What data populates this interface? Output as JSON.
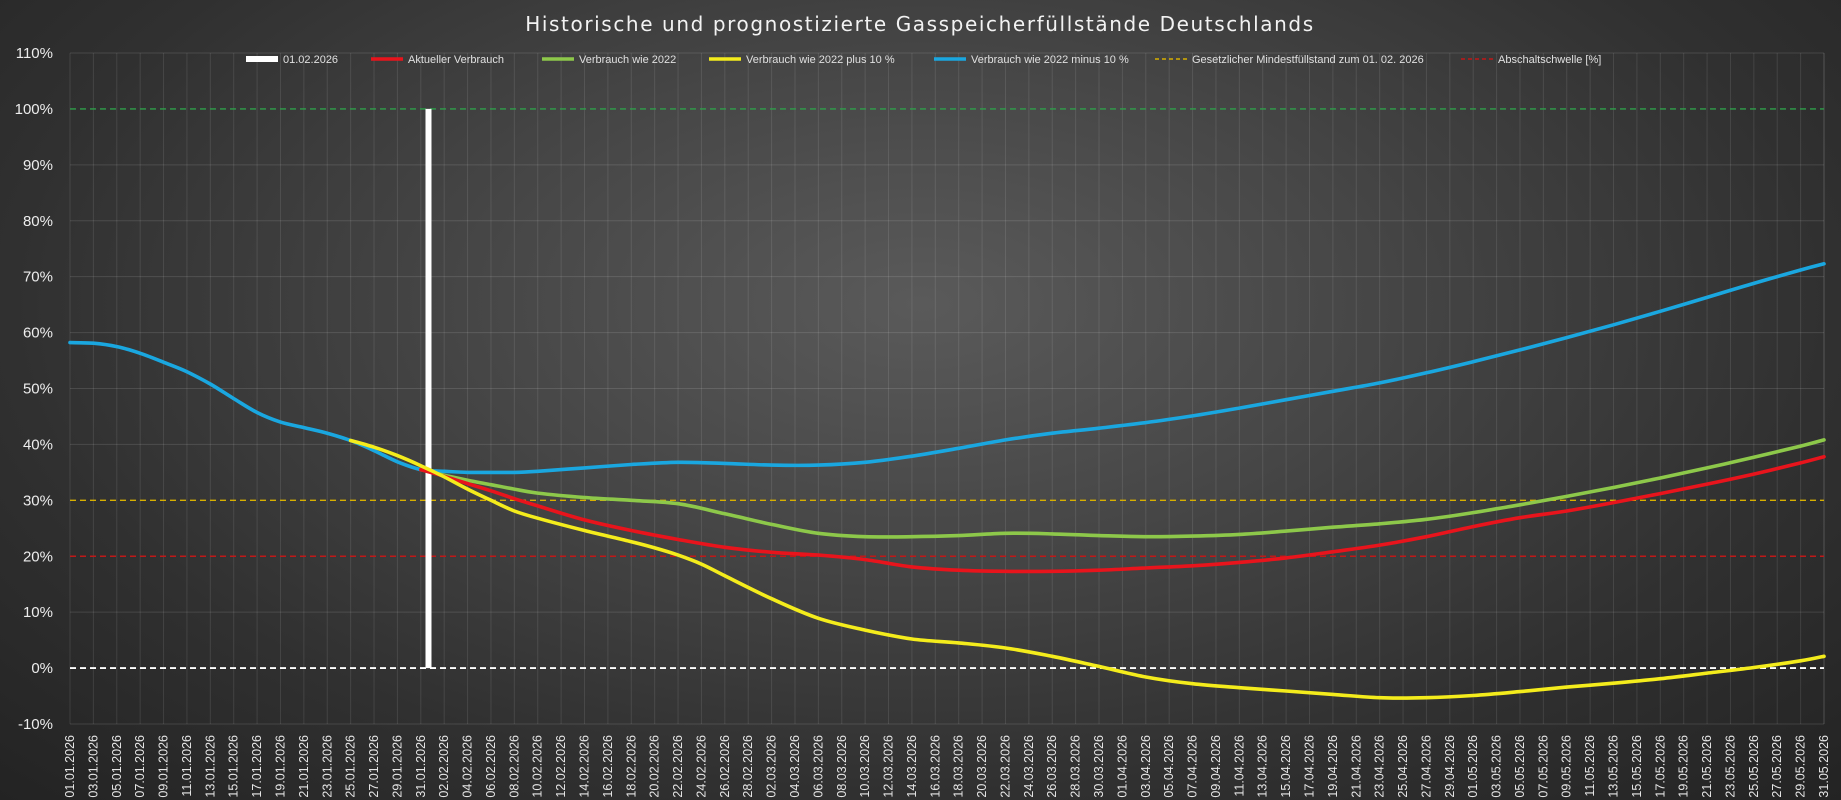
{
  "chart_data": {
    "type": "line",
    "title": "Historische und prognostizierte Gasspeicherfüllstände Deutschlands",
    "xlabel": "",
    "ylabel": "",
    "x_start": "01.01.2026",
    "x_end": "31.05.2026",
    "x_tick_labels": [
      "01.01.2026",
      "03.01.2026",
      "05.01.2026",
      "07.01.2026",
      "09.01.2026",
      "11.01.2026",
      "13.01.2026",
      "15.01.2026",
      "17.01.2026",
      "19.01.2026",
      "21.01.2026",
      "23.01.2026",
      "25.01.2026",
      "27.01.2026",
      "29.01.2026",
      "31.01.2026",
      "02.02.2026",
      "04.02.2026",
      "06.02.2026",
      "08.02.2026",
      "10.02.2026",
      "12.02.2026",
      "14.02.2026",
      "16.02.2026",
      "18.02.2026",
      "20.02.2026",
      "22.02.2026",
      "24.02.2026",
      "26.02.2026",
      "28.02.2026",
      "02.03.2026",
      "04.03.2026",
      "06.03.2026",
      "08.03.2026",
      "10.03.2026",
      "12.03.2026",
      "14.03.2026",
      "16.03.2026",
      "18.03.2026",
      "20.03.2026",
      "22.03.2026",
      "24.03.2026",
      "26.03.2026",
      "28.03.2026",
      "30.03.2026",
      "01.04.2026",
      "03.04.2026",
      "05.04.2026",
      "07.04.2026",
      "09.04.2026",
      "11.04.2026",
      "13.04.2026",
      "15.04.2026",
      "17.04.2026",
      "19.04.2026",
      "21.04.2026",
      "23.04.2026",
      "25.04.2026",
      "27.04.2026",
      "29.04.2026",
      "01.05.2026",
      "03.05.2026",
      "05.05.2026",
      "07.05.2026",
      "09.05.2026",
      "11.05.2026",
      "13.05.2026",
      "15.05.2026",
      "17.05.2026",
      "19.05.2026",
      "21.05.2026",
      "23.05.2026",
      "25.05.2026",
      "27.05.2026",
      "29.05.2026",
      "31.05.2026"
    ],
    "y_tick_labels": [
      "110%",
      "100%",
      "90%",
      "80%",
      "70%",
      "60%",
      "50%",
      "40%",
      "30%",
      "20%",
      "10%",
      "0%",
      "-10%"
    ],
    "ylim": [
      -10,
      110
    ],
    "grid": true,
    "legend_position": "top",
    "series": [
      {
        "name": "Verbrauch wie 2022 minus 10 %",
        "color": "#1aa7e0",
        "x": [
          "01.01.2026",
          "03.01.2026",
          "05.01.2026",
          "07.01.2026",
          "09.01.2026",
          "11.01.2026",
          "13.01.2026",
          "15.01.2026",
          "17.01.2026",
          "19.01.2026",
          "21.01.2026",
          "23.01.2026",
          "25.01.2026",
          "27.01.2026",
          "29.01.2026",
          "31.01.2026",
          "02.02.2026",
          "04.02.2026",
          "06.02.2026",
          "08.02.2026",
          "10.02.2026",
          "14.02.2026",
          "18.02.2026",
          "22.02.2026",
          "26.02.2026",
          "02.03.2026",
          "06.03.2026",
          "10.03.2026",
          "14.03.2026",
          "18.03.2026",
          "22.03.2026",
          "26.03.2026",
          "30.03.2026",
          "03.04.2026",
          "07.04.2026",
          "11.04.2026",
          "15.04.2026",
          "19.04.2026",
          "23.04.2026",
          "27.04.2026",
          "01.05.2026",
          "05.05.2026",
          "09.05.2026",
          "13.05.2026",
          "17.05.2026",
          "21.05.2026",
          "25.05.2026",
          "29.05.2026",
          "31.05.2026"
        ],
        "values": [
          58.2,
          58.1,
          57.5,
          56.3,
          54.7,
          53.0,
          50.8,
          48.2,
          45.7,
          44.0,
          43.0,
          42.0,
          40.7,
          38.9,
          36.9,
          35.5,
          35.2,
          35.0,
          35.0,
          35.0,
          35.2,
          35.8,
          36.4,
          36.8,
          36.6,
          36.3,
          36.3,
          36.8,
          37.9,
          39.3,
          40.8,
          42.0,
          42.9,
          43.9,
          45.1,
          46.5,
          48.0,
          49.5,
          51.0,
          52.8,
          54.8,
          56.9,
          59.1,
          61.4,
          63.8,
          66.3,
          68.8,
          71.2,
          72.3
        ]
      },
      {
        "name": "Verbrauch wie 2022",
        "color": "#8dc84a",
        "x": [
          "31.01.2026",
          "02.02.2026",
          "04.02.2026",
          "06.02.2026",
          "08.02.2026",
          "10.02.2026",
          "14.02.2026",
          "18.02.2026",
          "22.02.2026",
          "26.02.2026",
          "02.03.2026",
          "06.03.2026",
          "10.03.2026",
          "14.03.2026",
          "18.03.2026",
          "22.03.2026",
          "26.03.2026",
          "30.03.2026",
          "03.04.2026",
          "07.04.2026",
          "11.04.2026",
          "15.04.2026",
          "19.04.2026",
          "23.04.2026",
          "27.04.2026",
          "01.05.2026",
          "05.05.2026",
          "09.05.2026",
          "13.05.2026",
          "17.05.2026",
          "21.05.2026",
          "25.05.2026",
          "29.05.2026",
          "31.05.2026"
        ],
        "values": [
          35.5,
          34.5,
          33.6,
          32.8,
          32.0,
          31.3,
          30.5,
          30.0,
          29.4,
          27.6,
          25.7,
          24.1,
          23.5,
          23.5,
          23.7,
          24.1,
          24.0,
          23.7,
          23.5,
          23.6,
          23.9,
          24.5,
          25.2,
          25.8,
          26.6,
          27.8,
          29.2,
          30.7,
          32.3,
          34.0,
          35.8,
          37.7,
          39.7,
          40.8
        ]
      },
      {
        "name": "Aktueller Verbrauch",
        "color": "#e8141c",
        "x": [
          "31.01.2026",
          "02.02.2026",
          "04.02.2026",
          "06.02.2026",
          "08.02.2026",
          "10.02.2026",
          "14.02.2026",
          "18.02.2026",
          "22.02.2026",
          "26.02.2026",
          "02.03.2026",
          "06.03.2026",
          "10.03.2026",
          "14.03.2026",
          "18.03.2026",
          "22.03.2026",
          "26.03.2026",
          "30.03.2026",
          "03.04.2026",
          "07.04.2026",
          "11.04.2026",
          "15.04.2026",
          "19.04.2026",
          "23.04.2026",
          "27.04.2026",
          "01.05.2026",
          "05.05.2026",
          "09.05.2026",
          "13.05.2026",
          "17.05.2026",
          "21.05.2026",
          "25.05.2026",
          "29.05.2026",
          "31.05.2026"
        ],
        "values": [
          35.5,
          34.3,
          33.0,
          31.7,
          30.3,
          29.0,
          26.5,
          24.6,
          23.0,
          21.6,
          20.7,
          20.2,
          19.4,
          18.1,
          17.5,
          17.3,
          17.3,
          17.5,
          17.9,
          18.3,
          18.9,
          19.7,
          20.8,
          22.0,
          23.5,
          25.3,
          26.9,
          28.1,
          29.6,
          31.2,
          32.9,
          34.7,
          36.7,
          37.8
        ]
      },
      {
        "name": "Verbrauch wie 2022 plus 10 %",
        "color": "#f4ec1c",
        "x": [
          "25.01.2026",
          "27.01.2026",
          "29.01.2026",
          "31.01.2026",
          "02.02.2026",
          "04.02.2026",
          "06.02.2026",
          "08.02.2026",
          "10.02.2026",
          "14.02.2026",
          "18.02.2026",
          "20.02.2026",
          "22.02.2026",
          "24.02.2026",
          "26.02.2026",
          "02.03.2026",
          "06.03.2026",
          "10.03.2026",
          "14.03.2026",
          "18.03.2026",
          "22.03.2026",
          "26.03.2026",
          "30.03.2026",
          "03.04.2026",
          "07.04.2026",
          "11.04.2026",
          "15.04.2026",
          "19.04.2026",
          "23.04.2026",
          "27.04.2026",
          "01.05.2026",
          "05.05.2026",
          "09.05.2026",
          "13.05.2026",
          "17.05.2026",
          "21.05.2026",
          "25.05.2026",
          "29.05.2026",
          "31.05.2026"
        ],
        "values": [
          40.7,
          39.5,
          38.0,
          36.2,
          34.2,
          32.0,
          30.0,
          28.1,
          26.8,
          24.6,
          22.6,
          21.5,
          20.2,
          18.6,
          16.5,
          12.4,
          8.9,
          6.8,
          5.2,
          4.5,
          3.6,
          2.1,
          0.3,
          -1.6,
          -2.8,
          -3.5,
          -4.1,
          -4.7,
          -5.3,
          -5.3,
          -4.9,
          -4.2,
          -3.4,
          -2.7,
          -1.9,
          -0.9,
          0.1,
          1.3,
          2.1
        ]
      }
    ],
    "reference_lines": [
      {
        "name": "Gesetzlicher Mindestfüllstand zum 01. 02. 2026",
        "value": 30,
        "color": "#d8b000",
        "style": "dashed"
      },
      {
        "name": "Abschaltschwelle [%]",
        "value": 20,
        "color": "#c01818",
        "style": "dashed"
      },
      {
        "name": "",
        "value": 100,
        "color": "#2fa04a",
        "style": "dashed"
      },
      {
        "name": "",
        "value": 0,
        "color": "#ffffff",
        "style": "dashed"
      }
    ],
    "marker": {
      "name": "01.02.2026",
      "x": "01.02.2026",
      "y_from": 0,
      "y_to": 100,
      "color": "#ffffff"
    },
    "legend": [
      {
        "label": "01.02.2026",
        "color": "#ffffff",
        "style": "solid-thick"
      },
      {
        "label": "Aktueller Verbrauch",
        "color": "#e8141c",
        "style": "solid"
      },
      {
        "label": "Verbrauch wie 2022",
        "color": "#8dc84a",
        "style": "solid"
      },
      {
        "label": "Verbrauch wie 2022 plus 10 %",
        "color": "#f4ec1c",
        "style": "solid"
      },
      {
        "label": "Verbrauch wie 2022 minus 10 %",
        "color": "#1aa7e0",
        "style": "solid"
      },
      {
        "label": "Gesetzlicher Mindestfüllstand zum 01. 02. 2026",
        "color": "#d8b000",
        "style": "dashed"
      },
      {
        "label": "Abschaltschwelle [%]",
        "color": "#c01818",
        "style": "dashed"
      }
    ]
  }
}
